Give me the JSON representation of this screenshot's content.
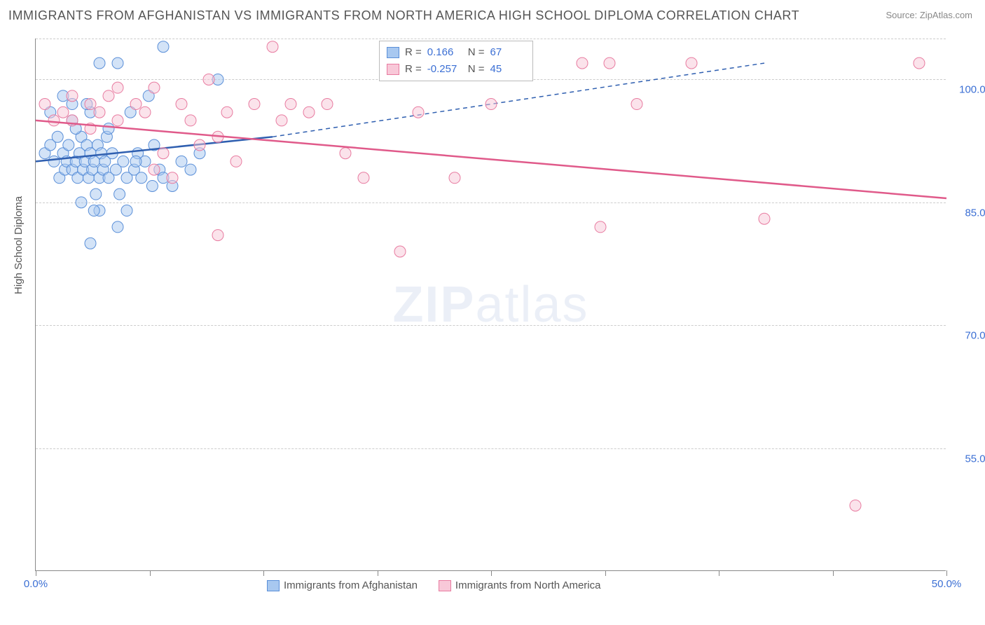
{
  "title": "IMMIGRANTS FROM AFGHANISTAN VS IMMIGRANTS FROM NORTH AMERICA HIGH SCHOOL DIPLOMA CORRELATION CHART",
  "source": "Source: ZipAtlas.com",
  "y_axis_label": "High School Diploma",
  "watermark_bold": "ZIP",
  "watermark_light": "atlas",
  "chart": {
    "type": "scatter",
    "xlim": [
      0,
      50
    ],
    "ylim": [
      40,
      105
    ],
    "x_ticks": [
      0,
      6.25,
      12.5,
      18.75,
      25,
      31.25,
      37.5,
      43.75,
      50
    ],
    "x_tick_labels": {
      "0": "0.0%",
      "50": "50.0%"
    },
    "y_ticks": [
      55,
      70,
      85,
      100
    ],
    "y_tick_labels": {
      "55": "55.0%",
      "70": "70.0%",
      "85": "85.0%",
      "100": "100.0%"
    },
    "grid_color": "#cccccc",
    "background_color": "#ffffff",
    "marker_radius": 8,
    "marker_opacity": 0.5,
    "series": [
      {
        "name": "Immigrants from Afghanistan",
        "color_fill": "#a8c8f0",
        "color_stroke": "#5a8fd8",
        "r_value": "0.166",
        "n_value": "67",
        "trend": {
          "x1": 0,
          "y1": 90,
          "x2": 13,
          "y2": 93,
          "dash_x2": 40,
          "dash_y2": 102,
          "color": "#2f5fb0",
          "width": 2.5
        },
        "points": [
          [
            0.5,
            91
          ],
          [
            0.8,
            92
          ],
          [
            1.0,
            90
          ],
          [
            1.2,
            93
          ],
          [
            1.3,
            88
          ],
          [
            1.5,
            91
          ],
          [
            1.6,
            89
          ],
          [
            1.7,
            90
          ],
          [
            1.8,
            92
          ],
          [
            2.0,
            89
          ],
          [
            2.0,
            95
          ],
          [
            2.2,
            90
          ],
          [
            2.3,
            88
          ],
          [
            2.4,
            91
          ],
          [
            2.5,
            93
          ],
          [
            2.6,
            89
          ],
          [
            2.7,
            90
          ],
          [
            2.8,
            92
          ],
          [
            2.9,
            88
          ],
          [
            3.0,
            91
          ],
          [
            3.1,
            89
          ],
          [
            3.2,
            90
          ],
          [
            3.3,
            86
          ],
          [
            3.4,
            92
          ],
          [
            3.5,
            88
          ],
          [
            3.6,
            91
          ],
          [
            3.7,
            89
          ],
          [
            3.8,
            90
          ],
          [
            3.9,
            93
          ],
          [
            4.0,
            88
          ],
          [
            4.2,
            91
          ],
          [
            4.4,
            89
          ],
          [
            4.5,
            102
          ],
          [
            4.6,
            86
          ],
          [
            4.8,
            90
          ],
          [
            5.0,
            88
          ],
          [
            5.2,
            96
          ],
          [
            5.4,
            89
          ],
          [
            5.6,
            91
          ],
          [
            5.8,
            88
          ],
          [
            6.0,
            90
          ],
          [
            6.2,
            98
          ],
          [
            6.4,
            87
          ],
          [
            6.8,
            89
          ],
          [
            7.0,
            104
          ],
          [
            2.0,
            97
          ],
          [
            3.0,
            96
          ],
          [
            4.0,
            94
          ],
          [
            2.2,
            94
          ],
          [
            2.8,
            97
          ],
          [
            3.5,
            84
          ],
          [
            4.5,
            82
          ],
          [
            3.0,
            80
          ],
          [
            5.0,
            84
          ],
          [
            5.5,
            90
          ],
          [
            6.5,
            92
          ],
          [
            7.5,
            87
          ],
          [
            8.0,
            90
          ],
          [
            8.5,
            89
          ],
          [
            9.0,
            91
          ],
          [
            10.0,
            100
          ],
          [
            7.0,
            88
          ],
          [
            3.5,
            102
          ],
          [
            1.5,
            98
          ],
          [
            0.8,
            96
          ],
          [
            2.5,
            85
          ],
          [
            3.2,
            84
          ]
        ]
      },
      {
        "name": "Immigrants from North America",
        "color_fill": "#f8c8d8",
        "color_stroke": "#e87ba0",
        "r_value": "-0.257",
        "n_value": "45",
        "trend": {
          "x1": 0,
          "y1": 95,
          "x2": 50,
          "y2": 85.5,
          "color": "#e05a8a",
          "width": 2.5
        },
        "points": [
          [
            0.5,
            97
          ],
          [
            1.5,
            96
          ],
          [
            2.0,
            98
          ],
          [
            3.0,
            97
          ],
          [
            3.5,
            96
          ],
          [
            4.0,
            98
          ],
          [
            4.5,
            95
          ],
          [
            5.5,
            97
          ],
          [
            6.0,
            96
          ],
          [
            6.5,
            99
          ],
          [
            7.0,
            91
          ],
          [
            8.0,
            97
          ],
          [
            8.5,
            95
          ],
          [
            9.5,
            100
          ],
          [
            10.0,
            93
          ],
          [
            10.5,
            96
          ],
          [
            11.0,
            90
          ],
          [
            12.0,
            97
          ],
          [
            13.0,
            104
          ],
          [
            14.0,
            97
          ],
          [
            15.0,
            96
          ],
          [
            16.0,
            97
          ],
          [
            17.0,
            91
          ],
          [
            18.0,
            88
          ],
          [
            20.0,
            79
          ],
          [
            21.0,
            96
          ],
          [
            23.0,
            88
          ],
          [
            25.0,
            97
          ],
          [
            30.0,
            102
          ],
          [
            31.0,
            82
          ],
          [
            31.5,
            102
          ],
          [
            33.0,
            97
          ],
          [
            36.0,
            102
          ],
          [
            40.0,
            83
          ],
          [
            45.0,
            48
          ],
          [
            48.5,
            102
          ],
          [
            6.5,
            89
          ],
          [
            7.5,
            88
          ],
          [
            9.0,
            92
          ],
          [
            3.0,
            94
          ],
          [
            2.0,
            95
          ],
          [
            4.5,
            99
          ],
          [
            10.0,
            81
          ],
          [
            1.0,
            95
          ],
          [
            13.5,
            95
          ]
        ]
      }
    ]
  },
  "correlation_box": {
    "r_label": "R =",
    "n_label": "N ="
  },
  "legend": {
    "series1": "Immigrants from Afghanistan",
    "series2": "Immigrants from North America"
  }
}
